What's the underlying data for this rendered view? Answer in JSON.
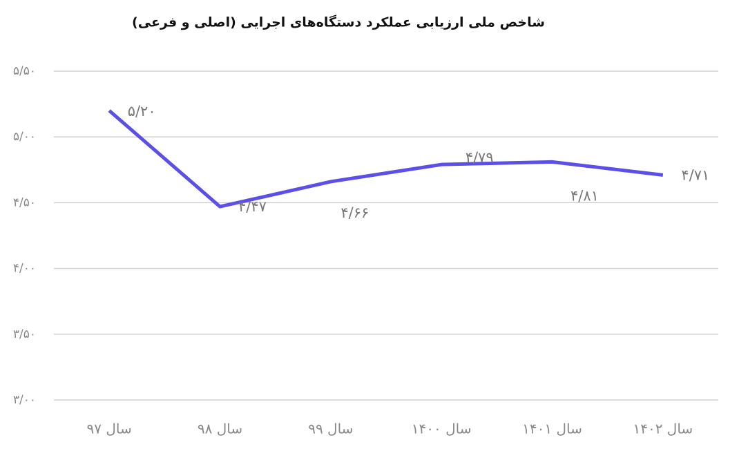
{
  "chart_data": {
    "type": "line",
    "title": "شاخص ملی ارزیابی عملکرد دستگاه‌های اجرایی (اصلی و فرعی)",
    "categories": [
      "سال ۹۷",
      "سال ۹۸",
      "سال ۹۹",
      "سال ۱۴۰۰",
      "سال ۱۴۰۱",
      "سال ۱۴۰۲"
    ],
    "series": [
      {
        "color": "#5a4fe6",
        "values": [
          5.2,
          4.47,
          4.66,
          4.79,
          4.81,
          4.71
        ],
        "value_labels": [
          "۵/۲۰",
          "۴/۴۷",
          "۴/۶۶",
          "۴/۷۹",
          "۴/۸۱",
          "۴/۷۱"
        ]
      }
    ],
    "ylim": [
      3.0,
      5.5
    ],
    "yticks": [
      {
        "value": 3.0,
        "label": "۳/۰۰"
      },
      {
        "value": 3.5,
        "label": "۳/۵۰"
      },
      {
        "value": 4.0,
        "label": "۴/۰۰"
      },
      {
        "value": 4.5,
        "label": "۴/۵۰"
      },
      {
        "value": 5.0,
        "label": "۵/۰۰"
      },
      {
        "value": 5.5,
        "label": "۵/۵۰"
      }
    ],
    "grid": true
  }
}
